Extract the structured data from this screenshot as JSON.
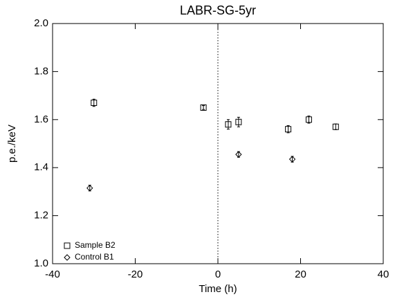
{
  "chart_data": {
    "type": "scatter",
    "title": "LABR-SG-5yr",
    "x_label": "Time (h)",
    "y_label": "p.e./keV",
    "xlim": [
      -40,
      40
    ],
    "xticks": [
      -40,
      -20,
      0,
      20,
      40
    ],
    "ylim": [
      1.0,
      2.0
    ],
    "yticks": [
      {
        "value": 1.0,
        "label": "1.0"
      },
      {
        "value": 1.2,
        "label": "1.2"
      },
      {
        "value": 1.4,
        "label": "1.4"
      },
      {
        "value": 1.6,
        "label": "1.6"
      },
      {
        "value": 1.8,
        "label": "1.8"
      },
      {
        "value": 2.0,
        "label": "2.0"
      }
    ],
    "vline": 0,
    "legend": "lower left",
    "series": [
      {
        "name": "Sample B2",
        "marker": "square",
        "color": "#000000",
        "x": [
          -30,
          -3.5,
          2.5,
          5,
          17,
          22,
          28.5
        ],
        "values": [
          1.67,
          1.65,
          1.58,
          1.59,
          1.56,
          1.6,
          1.57
        ],
        "errors": [
          0.015,
          0.008,
          0.02,
          0.02,
          0.015,
          0.015,
          0.012
        ]
      },
      {
        "name": "Control B1",
        "marker": "diamond",
        "color": "#000000",
        "x": [
          -31,
          5,
          18
        ],
        "values": [
          1.315,
          1.455,
          1.435
        ],
        "errors": [
          0.012,
          0.012,
          0.012
        ]
      }
    ]
  }
}
